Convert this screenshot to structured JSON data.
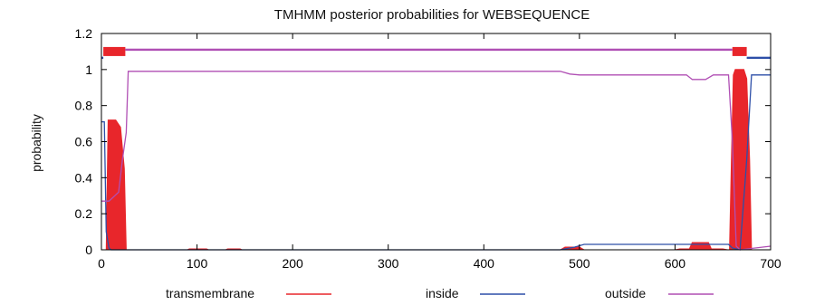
{
  "chart_data": {
    "type": "line",
    "title": "TMHMM posterior probabilities for WEBSEQUENCE",
    "xlabel": "",
    "ylabel": "probability",
    "xlim": [
      0,
      700
    ],
    "ylim": [
      0,
      1.2
    ],
    "x_ticks": [
      0,
      100,
      200,
      300,
      400,
      500,
      600,
      700
    ],
    "y_ticks": [
      0,
      0.2,
      0.4,
      0.6,
      0.8,
      1,
      1.2
    ],
    "legend_position": "bottom",
    "series": [
      {
        "name": "transmembrane",
        "color": "#e8262b",
        "style": "filled",
        "points": [
          [
            0,
            0
          ],
          [
            5,
            0
          ],
          [
            7,
            0.72
          ],
          [
            15,
            0.72
          ],
          [
            20,
            0.68
          ],
          [
            24,
            0.45
          ],
          [
            26,
            0
          ],
          [
            29,
            0
          ],
          [
            90,
            0
          ],
          [
            92,
            0.005
          ],
          [
            110,
            0.005
          ],
          [
            112,
            0
          ],
          [
            130,
            0
          ],
          [
            132,
            0.005
          ],
          [
            145,
            0.005
          ],
          [
            147,
            0
          ],
          [
            480,
            0
          ],
          [
            485,
            0.015
          ],
          [
            500,
            0.015
          ],
          [
            505,
            0
          ],
          [
            600,
            0
          ],
          [
            605,
            0.005
          ],
          [
            615,
            0.005
          ],
          [
            618,
            0.04
          ],
          [
            635,
            0.04
          ],
          [
            638,
            0.005
          ],
          [
            650,
            0.005
          ],
          [
            655,
            0
          ],
          [
            657,
            0
          ],
          [
            659,
            0.5
          ],
          [
            661,
            0.97
          ],
          [
            663,
            1.0
          ],
          [
            672,
            1.0
          ],
          [
            675,
            0.95
          ],
          [
            678,
            0.5
          ],
          [
            680,
            0
          ],
          [
            700,
            0
          ]
        ]
      },
      {
        "name": "inside",
        "color": "#2d4fa8",
        "style": "line",
        "points": [
          [
            0,
            0.71
          ],
          [
            3,
            0.71
          ],
          [
            5,
            0.1
          ],
          [
            8,
            0.01
          ],
          [
            10,
            0
          ],
          [
            200,
            0
          ],
          [
            400,
            0
          ],
          [
            480,
            0.0
          ],
          [
            495,
            0.015
          ],
          [
            505,
            0.03
          ],
          [
            600,
            0.03
          ],
          [
            620,
            0.03
          ],
          [
            640,
            0.03
          ],
          [
            650,
            0.03
          ],
          [
            656,
            0.03
          ],
          [
            660,
            0.01
          ],
          [
            668,
            0
          ],
          [
            675,
            0.5
          ],
          [
            680,
            0.97
          ],
          [
            700,
            0.97
          ]
        ]
      },
      {
        "name": "outside",
        "color": "#b04fb4",
        "style": "line",
        "points": [
          [
            0,
            0.27
          ],
          [
            8,
            0.27
          ],
          [
            18,
            0.32
          ],
          [
            22,
            0.5
          ],
          [
            26,
            0.65
          ],
          [
            28,
            0.99
          ],
          [
            100,
            0.99
          ],
          [
            200,
            0.99
          ],
          [
            300,
            0.99
          ],
          [
            400,
            0.99
          ],
          [
            480,
            0.99
          ],
          [
            490,
            0.975
          ],
          [
            500,
            0.97
          ],
          [
            600,
            0.97
          ],
          [
            612,
            0.97
          ],
          [
            618,
            0.945
          ],
          [
            632,
            0.945
          ],
          [
            640,
            0.97
          ],
          [
            652,
            0.97
          ],
          [
            656,
            0.97
          ],
          [
            660,
            0.6
          ],
          [
            664,
            0.02
          ],
          [
            668,
            0
          ],
          [
            700,
            0.02
          ]
        ]
      }
    ],
    "topology_bars": [
      {
        "series": "transmembrane",
        "level": 1.1,
        "segments": [
          [
            2,
            25
          ],
          [
            660,
            675
          ]
        ]
      },
      {
        "series": "inside",
        "level": 1.065,
        "segments": [
          [
            0,
            2
          ],
          [
            675,
            700
          ]
        ]
      },
      {
        "series": "outside",
        "level": 1.11,
        "segments": [
          [
            25,
            660
          ]
        ]
      }
    ]
  }
}
